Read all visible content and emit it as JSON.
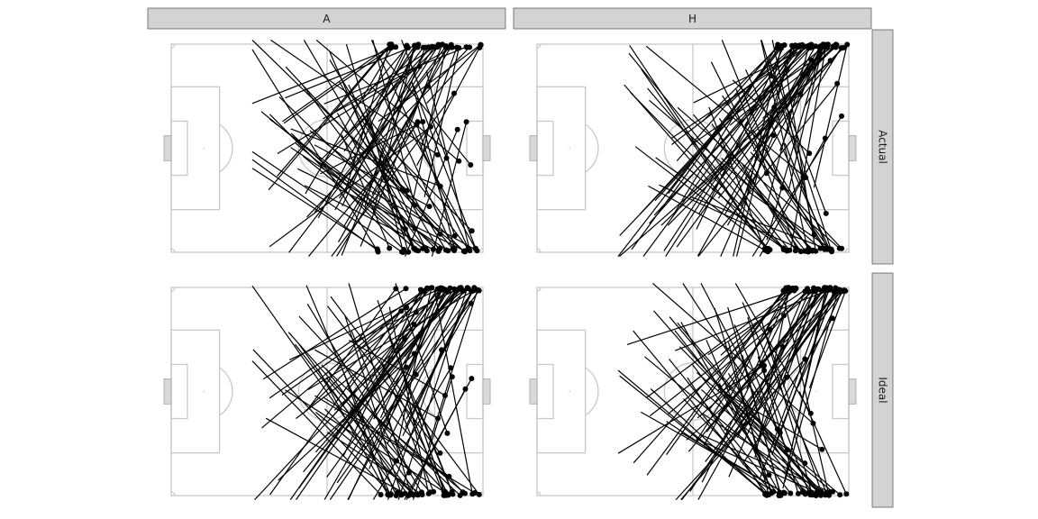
{
  "chart_data": {
    "type": "scatter",
    "facet_columns": [
      "A",
      "H"
    ],
    "facet_rows": [
      "Actual",
      "Ideal"
    ],
    "panels": [
      {
        "col": "A",
        "row": "Actual",
        "seed": 11,
        "n": 95,
        "cluster_x": 0.7
      },
      {
        "col": "H",
        "row": "Actual",
        "seed": 23,
        "n": 95,
        "cluster_x": 0.77
      },
      {
        "col": "A",
        "row": "Ideal",
        "seed": 37,
        "n": 95,
        "cluster_x": 0.72
      },
      {
        "col": "H",
        "row": "Ideal",
        "seed": 53,
        "n": 95,
        "cluster_x": 0.78
      }
    ],
    "colors": {
      "arrow": "#000000",
      "pitch": "#c8c8c8",
      "strip": "#d3d3d3"
    }
  }
}
